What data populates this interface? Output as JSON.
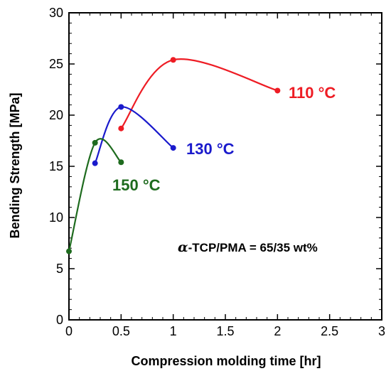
{
  "chart_data": {
    "type": "line",
    "title": "",
    "xlabel": "Compression molding time [hr]",
    "ylabel": "Bending Strength [MPa]",
    "xlim": [
      0,
      3
    ],
    "ylim": [
      0,
      30
    ],
    "xticks": [
      "0",
      "0.5",
      "1",
      "1.5",
      "2",
      "2.5",
      "3"
    ],
    "yticks": [
      "0",
      "5",
      "10",
      "15",
      "20",
      "25",
      "30"
    ],
    "grid": false,
    "series": [
      {
        "name": "110 °C",
        "color": "#ee1c24",
        "x": [
          0.5,
          1,
          2
        ],
        "y": [
          18.7,
          25.4,
          22.4
        ]
      },
      {
        "name": "130 °C",
        "color": "#1a1acc",
        "x": [
          0.25,
          0.5,
          1
        ],
        "y": [
          15.3,
          20.8,
          16.8
        ]
      },
      {
        "name": "150 °C",
        "color": "#1e6b1e",
        "x": [
          0,
          0.25,
          0.5
        ],
        "y": [
          6.7,
          17.3,
          15.4
        ]
      }
    ],
    "annotation": {
      "prefix": "α",
      "text": "-TCP/PMA = 65/35 wt%"
    }
  }
}
